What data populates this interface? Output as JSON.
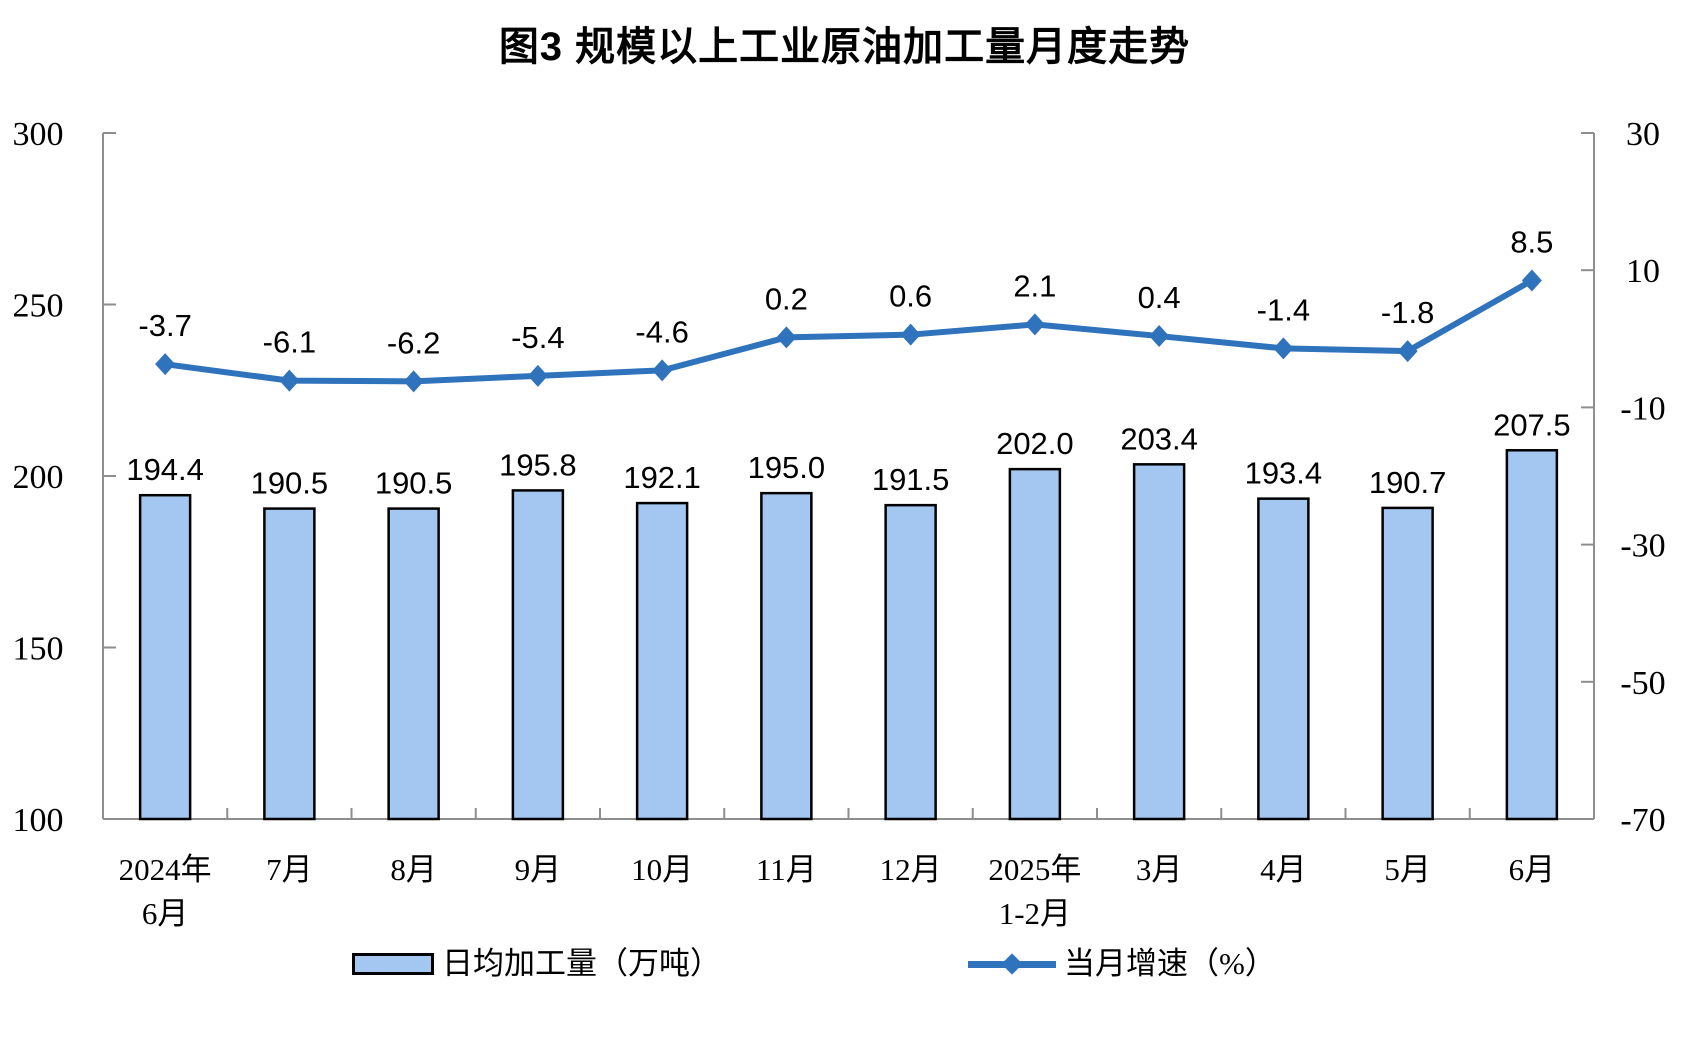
{
  "title": "图3 规模以上工业原油加工量月度走势",
  "chart_data": {
    "type": "bar+line",
    "title": "图3 规模以上工业原油加工量月度走势",
    "categories": [
      [
        "2024年",
        "6月"
      ],
      [
        "7月"
      ],
      [
        "8月"
      ],
      [
        "9月"
      ],
      [
        "10月"
      ],
      [
        "11月"
      ],
      [
        "12月"
      ],
      [
        "2025年",
        "1-2月"
      ],
      [
        "3月"
      ],
      [
        "4月"
      ],
      [
        "5月"
      ],
      [
        "6月"
      ]
    ],
    "series": [
      {
        "name": "日均加工量（万吨）",
        "type": "bar",
        "axis": "left",
        "values": [
          194.4,
          190.5,
          190.5,
          195.8,
          192.1,
          195.0,
          191.5,
          202.0,
          203.4,
          193.4,
          190.7,
          207.5
        ]
      },
      {
        "name": "当月增速（%）",
        "type": "line",
        "axis": "right",
        "values": [
          -3.7,
          -6.1,
          -6.2,
          -5.4,
          -4.6,
          0.2,
          0.6,
          2.1,
          0.4,
          -1.4,
          -1.8,
          8.5
        ]
      }
    ],
    "left_axis": {
      "min": 100,
      "max": 300,
      "ticks": [
        300,
        250,
        200,
        150,
        100
      ]
    },
    "right_axis": {
      "min": -70,
      "max": 30,
      "ticks": [
        30,
        10,
        -10,
        -30,
        -50,
        -70
      ]
    },
    "grid": false,
    "legend_position": "bottom",
    "colors": {
      "bar_fill": "#A3C7F0",
      "bar_border": "#000000",
      "line": "#2E73BC",
      "axis": "#8E8E8E",
      "text": "#000000"
    }
  }
}
